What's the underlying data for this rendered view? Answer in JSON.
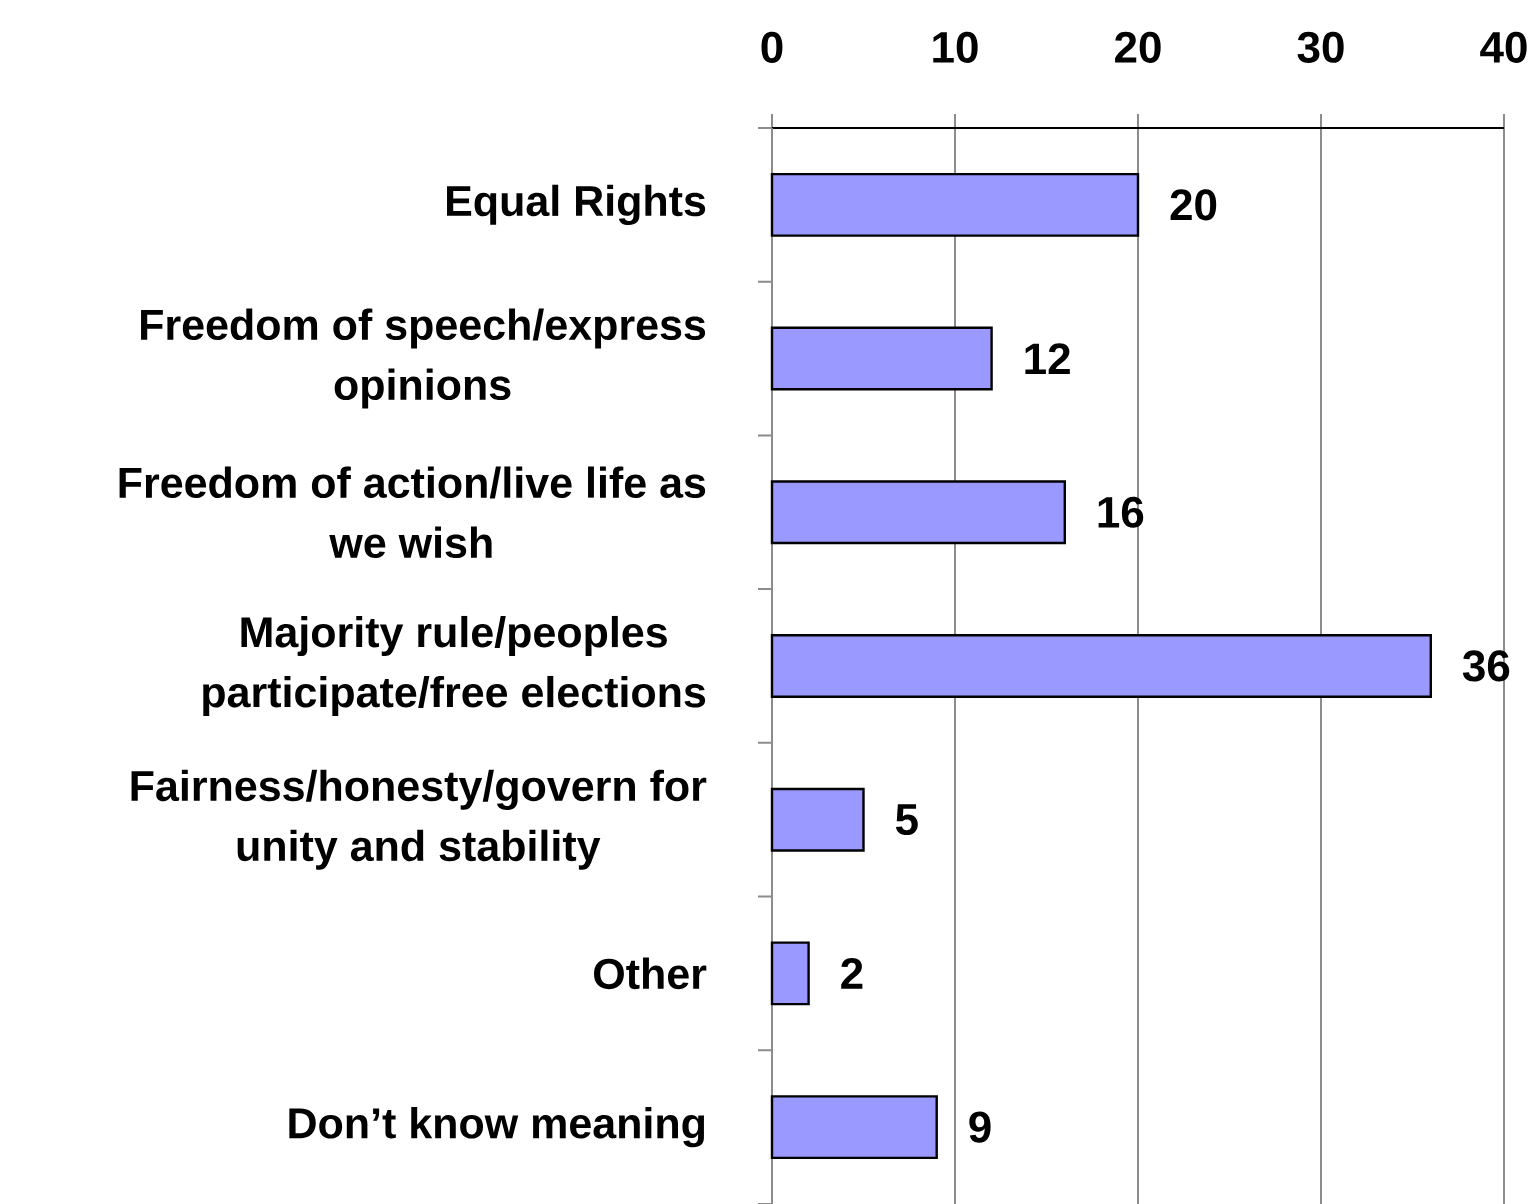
{
  "chart_data": {
    "type": "bar",
    "orientation": "horizontal",
    "categories": [
      "Equal Rights",
      "Freedom of speech/express opinions",
      "Freedom of action/live life as we wish",
      "Majority rule/peoples participate/free elections",
      "Fairness/honesty/govern for unity and stability",
      "Other",
      "Don’t know meaning"
    ],
    "values": [
      20,
      12,
      16,
      36,
      5,
      2,
      9
    ],
    "color": "#9999ff",
    "xlim": [
      0,
      40
    ],
    "xticks": [
      0,
      10,
      20,
      30,
      40
    ],
    "grid": "x",
    "data_labels": true
  }
}
